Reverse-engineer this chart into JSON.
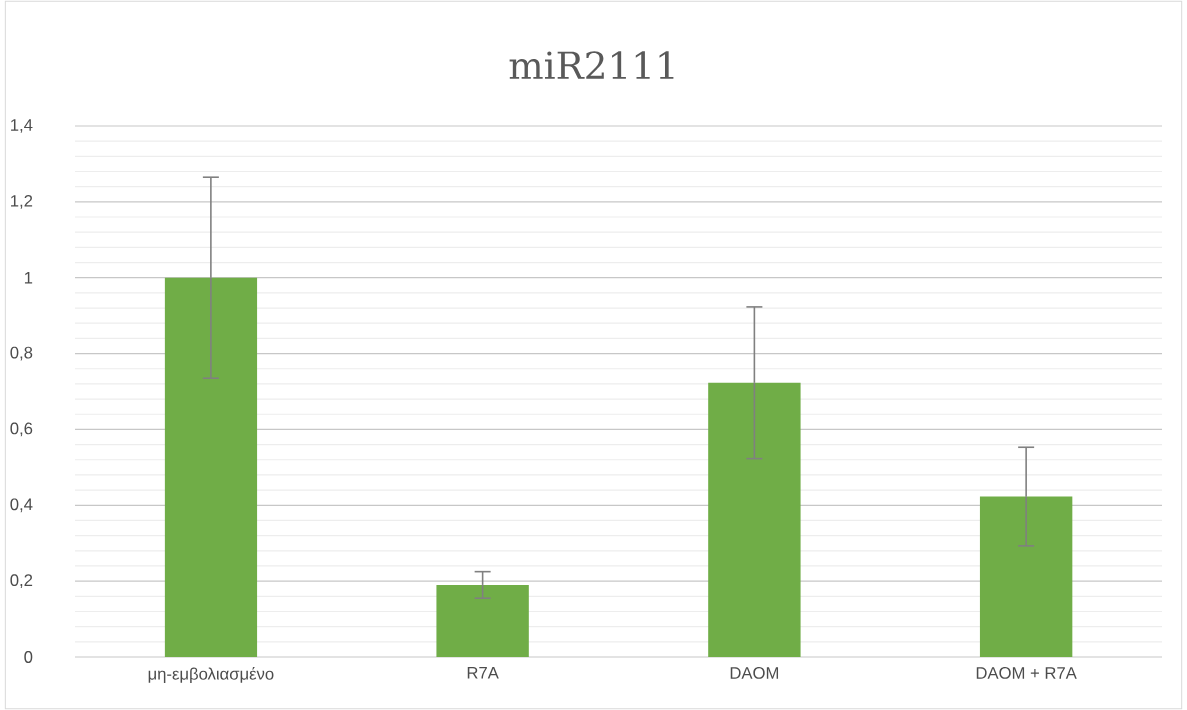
{
  "chart_data": {
    "type": "bar",
    "title": "miR2111",
    "categories": [
      "μη-εμβολιασμένο",
      "R7A",
      "DAOM",
      "DAOM + R7A"
    ],
    "values": [
      1.0,
      0.19,
      0.723,
      0.423
    ],
    "errors": [
      0.265,
      0.035,
      0.2,
      0.13
    ],
    "color": "#70ad47",
    "ylim": [
      0,
      1.4
    ],
    "yticks": [
      0,
      {
        "value": 0.2,
        "label": "0,2"
      },
      {
        "value": 0.4,
        "label": "0,4"
      },
      {
        "value": 0.6,
        "label": "0,6"
      },
      {
        "value": 0.8,
        "label": "0,8"
      },
      1,
      {
        "value": 1.2,
        "label": "1,2"
      },
      {
        "value": 1.4,
        "label": "1,4"
      }
    ],
    "grid": "y"
  }
}
